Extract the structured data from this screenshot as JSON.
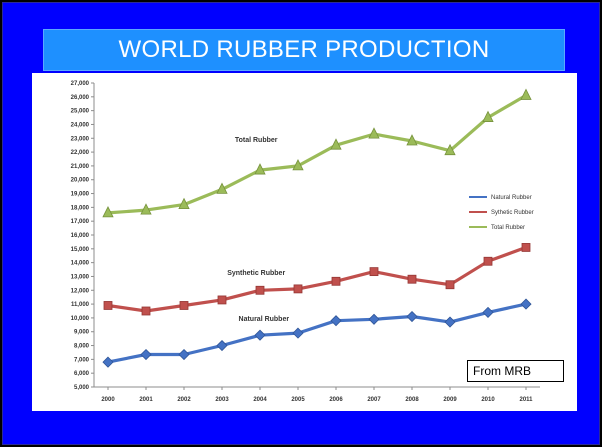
{
  "slide": {
    "title": "WORLD RUBBER PRODUCTION",
    "source_note": "From MRB"
  },
  "colors": {
    "background": "#0000FF",
    "title_bar": "#1E90FF",
    "natural": "#4472C4",
    "synthetic": "#C0504D",
    "total": "#9BBB59"
  },
  "chart_data": {
    "type": "line",
    "title": "",
    "xlabel": "",
    "ylabel": "",
    "x": [
      "2000",
      "2001",
      "2002",
      "2003",
      "2004",
      "2005",
      "2006",
      "2007",
      "2008",
      "2009",
      "2010",
      "2011"
    ],
    "ylim": [
      5000,
      27000
    ],
    "y_ticks": [
      "5,000",
      "6,000",
      "7,000",
      "8,000",
      "9,000",
      "10,000",
      "11,000",
      "12,000",
      "13,000",
      "14,000",
      "15,000",
      "16,000",
      "17,000",
      "18,000",
      "19,000",
      "20,000",
      "21,000",
      "22,000",
      "23,000",
      "24,000",
      "25,000",
      "26,000",
      "27,000"
    ],
    "grid": false,
    "legend_position": "right",
    "series": [
      {
        "name": "Natural Rubber",
        "marker": "diamond",
        "color": "#4472C4",
        "values": [
          6800,
          7350,
          7350,
          8000,
          8750,
          8900,
          9800,
          9900,
          10100,
          9700,
          10400,
          11000
        ]
      },
      {
        "name": "Sythetic Rubber",
        "marker": "square",
        "color": "#C0504D",
        "values": [
          10900,
          10500,
          10900,
          11300,
          12000,
          12100,
          12650,
          13350,
          12800,
          12400,
          14100,
          15100
        ]
      },
      {
        "name": "Total Rubber",
        "marker": "triangle",
        "color": "#9BBB59",
        "values": [
          17600,
          17800,
          18200,
          19300,
          20700,
          21000,
          22500,
          23300,
          22800,
          22100,
          24500,
          26100
        ]
      }
    ],
    "annotations": [
      {
        "text": "Total Rubber",
        "series": 2
      },
      {
        "text": "Synthetic Rubber",
        "series": 1
      },
      {
        "text": "Natural Rubber",
        "series": 0
      }
    ]
  }
}
